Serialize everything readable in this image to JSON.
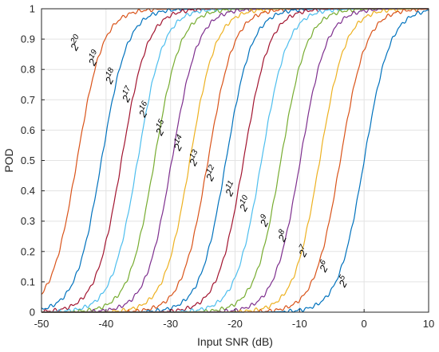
{
  "chart_data": {
    "type": "line",
    "xlabel": "Input SNR (dB)",
    "ylabel": "POD",
    "xlim": [
      -50,
      10
    ],
    "ylim": [
      0,
      1
    ],
    "xticks": [
      "-50",
      "-40",
      "-30",
      "-20",
      "-10",
      "0",
      "10"
    ],
    "yticks": [
      "0",
      "0.1",
      "0.2",
      "0.3",
      "0.4",
      "0.5",
      "0.6",
      "0.7",
      "0.8",
      "0.9",
      "1"
    ],
    "grid": true,
    "series": [
      {
        "name": "2^20",
        "base": "2",
        "exp": "20",
        "color": "#D95319",
        "x50": -44.5,
        "label_x": -44.6,
        "label_y": 0.86
      },
      {
        "name": "2^19",
        "base": "2",
        "exp": "19",
        "color": "#0072BD",
        "x50": -40.7,
        "label_x": -41.8,
        "label_y": 0.81
      },
      {
        "name": "2^18",
        "base": "2",
        "exp": "18",
        "color": "#A2142F",
        "x50": -37.6,
        "label_x": -39.2,
        "label_y": 0.75
      },
      {
        "name": "2^17",
        "base": "2",
        "exp": "17",
        "color": "#4DBEEE",
        "x50": -35.1,
        "label_x": -36.6,
        "label_y": 0.69
      },
      {
        "name": "2^16",
        "base": "2",
        "exp": "16",
        "color": "#77AC30",
        "x50": -32.5,
        "label_x": -34.0,
        "label_y": 0.64
      },
      {
        "name": "2^15",
        "base": "2",
        "exp": "15",
        "color": "#7E2F8E",
        "x50": -29.8,
        "label_x": -31.4,
        "label_y": 0.58
      },
      {
        "name": "2^14",
        "base": "2",
        "exp": "14",
        "color": "#EDB120",
        "x50": -27.0,
        "label_x": -28.6,
        "label_y": 0.53
      },
      {
        "name": "2^13",
        "base": "2",
        "exp": "13",
        "color": "#D95319",
        "x50": -24.2,
        "label_x": -26.2,
        "label_y": 0.48
      },
      {
        "name": "2^12",
        "base": "2",
        "exp": "12",
        "color": "#0072BD",
        "x50": -21.4,
        "label_x": -23.6,
        "label_y": 0.43
      },
      {
        "name": "2^11",
        "base": "2",
        "exp": "11",
        "color": "#A2142F",
        "x50": -18.7,
        "label_x": -20.6,
        "label_y": 0.38
      },
      {
        "name": "2^10",
        "base": "2",
        "exp": "10",
        "color": "#4DBEEE",
        "x50": -15.9,
        "label_x": -18.4,
        "label_y": 0.33
      },
      {
        "name": "2^9",
        "base": "2",
        "exp": "9",
        "color": "#77AC30",
        "x50": -12.9,
        "label_x": -15.2,
        "label_y": 0.28
      },
      {
        "name": "2^8",
        "base": "2",
        "exp": "8",
        "color": "#7E2F8E",
        "x50": -9.9,
        "label_x": -12.4,
        "label_y": 0.23
      },
      {
        "name": "2^7",
        "base": "2",
        "exp": "7",
        "color": "#EDB120",
        "x50": -6.9,
        "label_x": -9.2,
        "label_y": 0.18
      },
      {
        "name": "2^6",
        "base": "2",
        "exp": "6",
        "color": "#D95319",
        "x50": -3.7,
        "label_x": -6.0,
        "label_y": 0.13
      },
      {
        "name": "2^5",
        "base": "2",
        "exp": "5",
        "color": "#0072BD",
        "x50": 0.0,
        "label_x": -3.0,
        "label_y": 0.08
      }
    ]
  }
}
